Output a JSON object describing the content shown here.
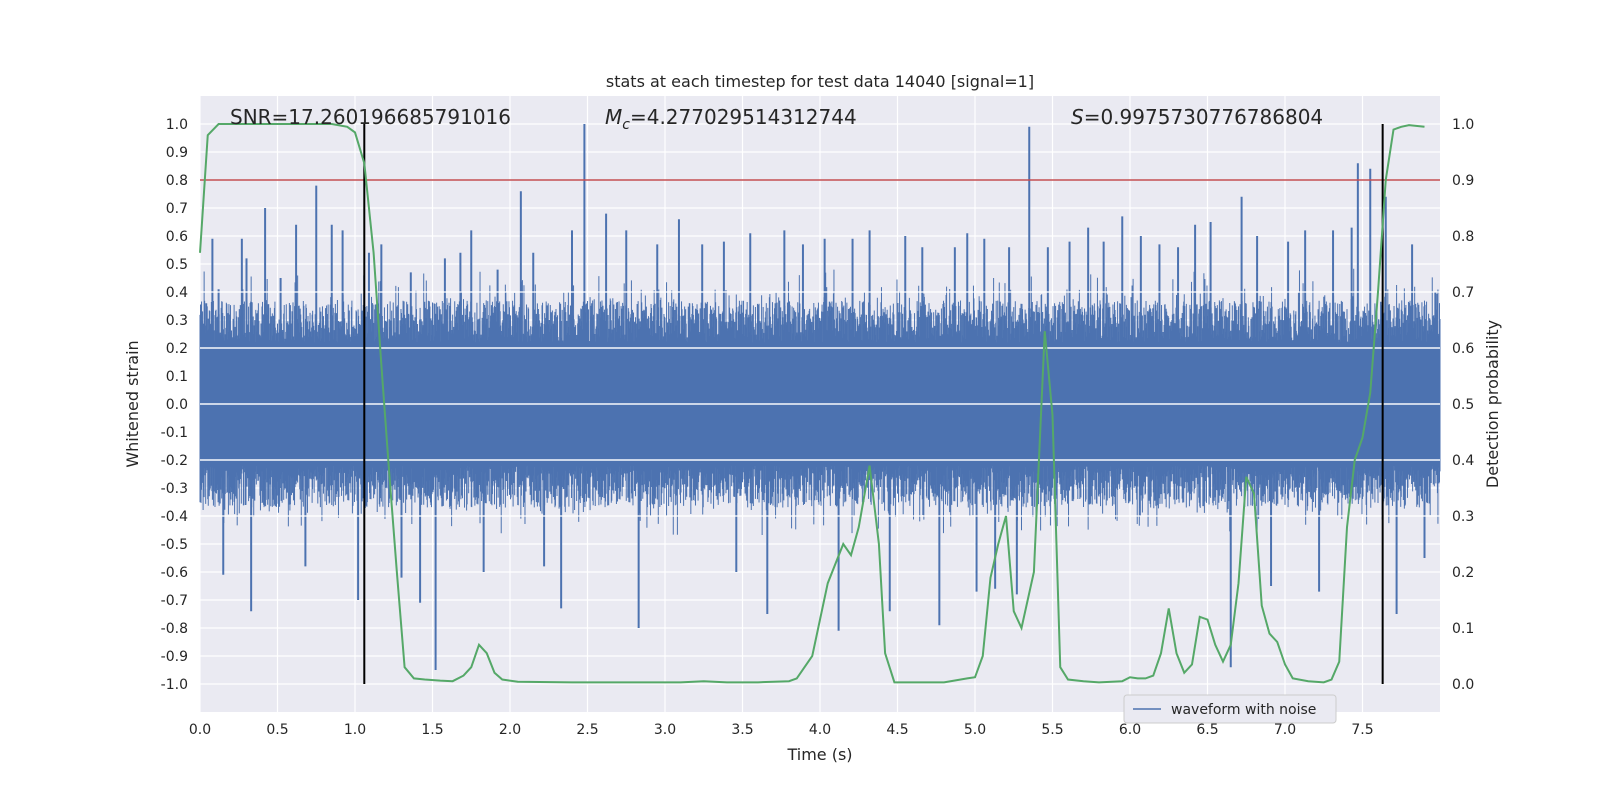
{
  "chart_data": {
    "type": "line",
    "title": "stats at each timestep for test data 14040 [signal=1]",
    "xlabel": "Time (s)",
    "ylabel": "Whitened strain",
    "y2label": "Detection probability",
    "xlim": [
      0.0,
      8.0
    ],
    "ylim": [
      -1.1,
      1.1
    ],
    "y2lim": [
      -0.05,
      1.05
    ],
    "x_ticks": [
      0.0,
      0.5,
      1.0,
      1.5,
      2.0,
      2.5,
      3.0,
      3.5,
      4.0,
      4.5,
      5.0,
      5.5,
      6.0,
      6.5,
      7.0,
      7.5
    ],
    "y_ticks": [
      -1.0,
      -0.9,
      -0.8,
      -0.7,
      -0.6,
      -0.5,
      -0.4,
      -0.3,
      -0.2,
      -0.1,
      0.0,
      0.1,
      0.2,
      0.3,
      0.4,
      0.5,
      0.6,
      0.7,
      0.8,
      0.9,
      1.0
    ],
    "y2_ticks": [
      0.0,
      0.1,
      0.2,
      0.3,
      0.4,
      0.5,
      0.6,
      0.7,
      0.8,
      0.9,
      1.0
    ],
    "grid": true,
    "legend": {
      "placement": "lower-right",
      "entries": [
        "waveform with noise"
      ]
    },
    "annotations": {
      "snr": "SNR=17.260196685791016",
      "mc": "=4.277029514312744",
      "mc_symbol": "M",
      "mc_sub": "c",
      "s": "=0.9975730776786804",
      "s_symbol": "S"
    },
    "threshold": {
      "y2": 0.9,
      "color": "#c44e52"
    },
    "vlines_x": [
      1.06,
      7.63
    ],
    "waveform": {
      "name": "waveform with noise",
      "color": "#4c72b0",
      "core_amplitude": 0.22,
      "spikes": [
        {
          "x": 0.04,
          "y": 0.36
        },
        {
          "x": 0.08,
          "y": 0.59
        },
        {
          "x": 0.12,
          "y": 0.41
        },
        {
          "x": 0.15,
          "y": -0.61
        },
        {
          "x": 0.27,
          "y": 0.59
        },
        {
          "x": 0.3,
          "y": 0.52
        },
        {
          "x": 0.33,
          "y": -0.74
        },
        {
          "x": 0.42,
          "y": 0.7
        },
        {
          "x": 0.52,
          "y": 0.45
        },
        {
          "x": 0.62,
          "y": 0.64
        },
        {
          "x": 0.68,
          "y": -0.58
        },
        {
          "x": 0.75,
          "y": 0.78
        },
        {
          "x": 0.85,
          "y": 0.64
        },
        {
          "x": 0.92,
          "y": 0.62
        },
        {
          "x": 1.02,
          "y": -0.7
        },
        {
          "x": 1.09,
          "y": 0.54
        },
        {
          "x": 1.17,
          "y": 0.57
        },
        {
          "x": 1.3,
          "y": -0.62
        },
        {
          "x": 1.36,
          "y": 0.47
        },
        {
          "x": 1.42,
          "y": -0.71
        },
        {
          "x": 1.52,
          "y": -0.95
        },
        {
          "x": 1.58,
          "y": 0.52
        },
        {
          "x": 1.68,
          "y": 0.54
        },
        {
          "x": 1.75,
          "y": 0.62
        },
        {
          "x": 1.83,
          "y": -0.6
        },
        {
          "x": 1.92,
          "y": 0.48
        },
        {
          "x": 2.07,
          "y": 0.76
        },
        {
          "x": 2.15,
          "y": 0.54
        },
        {
          "x": 2.22,
          "y": -0.58
        },
        {
          "x": 2.33,
          "y": -0.73
        },
        {
          "x": 2.4,
          "y": 0.62
        },
        {
          "x": 2.48,
          "y": 1.0
        },
        {
          "x": 2.62,
          "y": 0.68
        },
        {
          "x": 2.75,
          "y": 0.62
        },
        {
          "x": 2.83,
          "y": -0.8
        },
        {
          "x": 2.95,
          "y": 0.57
        },
        {
          "x": 3.09,
          "y": 0.66
        },
        {
          "x": 3.24,
          "y": 0.57
        },
        {
          "x": 3.38,
          "y": 0.58
        },
        {
          "x": 3.46,
          "y": -0.6
        },
        {
          "x": 3.55,
          "y": 0.61
        },
        {
          "x": 3.66,
          "y": -0.75
        },
        {
          "x": 3.77,
          "y": 0.62
        },
        {
          "x": 3.89,
          "y": 0.57
        },
        {
          "x": 4.03,
          "y": 0.59
        },
        {
          "x": 4.12,
          "y": -0.81
        },
        {
          "x": 4.21,
          "y": 0.59
        },
        {
          "x": 4.32,
          "y": 0.62
        },
        {
          "x": 4.45,
          "y": -0.74
        },
        {
          "x": 4.55,
          "y": 0.6
        },
        {
          "x": 4.66,
          "y": 0.56
        },
        {
          "x": 4.77,
          "y": -0.79
        },
        {
          "x": 4.87,
          "y": 0.56
        },
        {
          "x": 4.95,
          "y": 0.61
        },
        {
          "x": 5.01,
          "y": -0.67
        },
        {
          "x": 5.06,
          "y": 0.59
        },
        {
          "x": 5.13,
          "y": -0.66
        },
        {
          "x": 5.22,
          "y": 0.56
        },
        {
          "x": 5.27,
          "y": -0.68
        },
        {
          "x": 5.35,
          "y": 0.99
        },
        {
          "x": 5.47,
          "y": 0.56
        },
        {
          "x": 5.61,
          "y": 0.58
        },
        {
          "x": 5.73,
          "y": 0.63
        },
        {
          "x": 5.83,
          "y": 0.58
        },
        {
          "x": 5.95,
          "y": 0.67
        },
        {
          "x": 6.07,
          "y": 0.6
        },
        {
          "x": 6.19,
          "y": 0.57
        },
        {
          "x": 6.31,
          "y": 0.56
        },
        {
          "x": 6.42,
          "y": 0.64
        },
        {
          "x": 6.52,
          "y": 0.65
        },
        {
          "x": 6.65,
          "y": -0.94
        },
        {
          "x": 6.72,
          "y": 0.74
        },
        {
          "x": 6.82,
          "y": 0.6
        },
        {
          "x": 6.91,
          "y": -0.65
        },
        {
          "x": 7.02,
          "y": 0.58
        },
        {
          "x": 7.13,
          "y": 0.62
        },
        {
          "x": 7.22,
          "y": -0.67
        },
        {
          "x": 7.31,
          "y": 0.62
        },
        {
          "x": 7.43,
          "y": 0.63
        },
        {
          "x": 7.47,
          "y": 0.86
        },
        {
          "x": 7.55,
          "y": 0.84
        },
        {
          "x": 7.65,
          "y": 0.74
        },
        {
          "x": 7.72,
          "y": -0.75
        },
        {
          "x": 7.82,
          "y": 0.57
        },
        {
          "x": 7.9,
          "y": -0.55
        },
        {
          "x": 7.97,
          "y": 0.4
        }
      ]
    },
    "detection_probability": {
      "color": "#55a868",
      "points": [
        [
          0.0,
          0.77
        ],
        [
          0.05,
          0.98
        ],
        [
          0.12,
          1.0
        ],
        [
          0.25,
          1.0
        ],
        [
          0.4,
          1.0
        ],
        [
          0.55,
          1.0
        ],
        [
          0.7,
          1.0
        ],
        [
          0.85,
          1.0
        ],
        [
          0.95,
          0.995
        ],
        [
          1.0,
          0.985
        ],
        [
          1.06,
          0.93
        ],
        [
          1.12,
          0.77
        ],
        [
          1.17,
          0.57
        ],
        [
          1.22,
          0.38
        ],
        [
          1.27,
          0.2
        ],
        [
          1.32,
          0.03
        ],
        [
          1.38,
          0.01
        ],
        [
          1.45,
          0.008
        ],
        [
          1.55,
          0.006
        ],
        [
          1.63,
          0.005
        ],
        [
          1.7,
          0.015
        ],
        [
          1.75,
          0.03
        ],
        [
          1.8,
          0.07
        ],
        [
          1.85,
          0.055
        ],
        [
          1.9,
          0.02
        ],
        [
          1.95,
          0.008
        ],
        [
          2.05,
          0.004
        ],
        [
          2.4,
          0.003
        ],
        [
          2.8,
          0.003
        ],
        [
          3.1,
          0.003
        ],
        [
          3.25,
          0.005
        ],
        [
          3.4,
          0.003
        ],
        [
          3.6,
          0.003
        ],
        [
          3.8,
          0.005
        ],
        [
          3.85,
          0.01
        ],
        [
          3.95,
          0.05
        ],
        [
          4.05,
          0.18
        ],
        [
          4.15,
          0.25
        ],
        [
          4.2,
          0.23
        ],
        [
          4.25,
          0.28
        ],
        [
          4.32,
          0.39
        ],
        [
          4.38,
          0.25
        ],
        [
          4.42,
          0.055
        ],
        [
          4.48,
          0.003
        ],
        [
          4.6,
          0.003
        ],
        [
          4.8,
          0.003
        ],
        [
          4.95,
          0.01
        ],
        [
          5.0,
          0.012
        ],
        [
          5.05,
          0.05
        ],
        [
          5.1,
          0.19
        ],
        [
          5.15,
          0.25
        ],
        [
          5.2,
          0.3
        ],
        [
          5.25,
          0.13
        ],
        [
          5.3,
          0.1
        ],
        [
          5.38,
          0.2
        ],
        [
          5.45,
          0.63
        ],
        [
          5.5,
          0.48
        ],
        [
          5.55,
          0.03
        ],
        [
          5.6,
          0.008
        ],
        [
          5.7,
          0.005
        ],
        [
          5.8,
          0.003
        ],
        [
          5.95,
          0.005
        ],
        [
          6.0,
          0.012
        ],
        [
          6.05,
          0.01
        ],
        [
          6.1,
          0.01
        ],
        [
          6.15,
          0.015
        ],
        [
          6.2,
          0.055
        ],
        [
          6.25,
          0.135
        ],
        [
          6.3,
          0.055
        ],
        [
          6.35,
          0.02
        ],
        [
          6.4,
          0.035
        ],
        [
          6.45,
          0.12
        ],
        [
          6.5,
          0.115
        ],
        [
          6.55,
          0.07
        ],
        [
          6.6,
          0.04
        ],
        [
          6.65,
          0.07
        ],
        [
          6.7,
          0.18
        ],
        [
          6.75,
          0.37
        ],
        [
          6.8,
          0.34
        ],
        [
          6.85,
          0.14
        ],
        [
          6.9,
          0.09
        ],
        [
          6.95,
          0.075
        ],
        [
          7.0,
          0.035
        ],
        [
          7.05,
          0.01
        ],
        [
          7.15,
          0.005
        ],
        [
          7.25,
          0.003
        ],
        [
          7.3,
          0.008
        ],
        [
          7.35,
          0.04
        ],
        [
          7.4,
          0.28
        ],
        [
          7.45,
          0.4
        ],
        [
          7.5,
          0.44
        ],
        [
          7.55,
          0.52
        ],
        [
          7.6,
          0.7
        ],
        [
          7.65,
          0.9
        ],
        [
          7.7,
          0.99
        ],
        [
          7.75,
          0.995
        ],
        [
          7.8,
          0.998
        ],
        [
          7.9,
          0.995
        ]
      ]
    }
  }
}
